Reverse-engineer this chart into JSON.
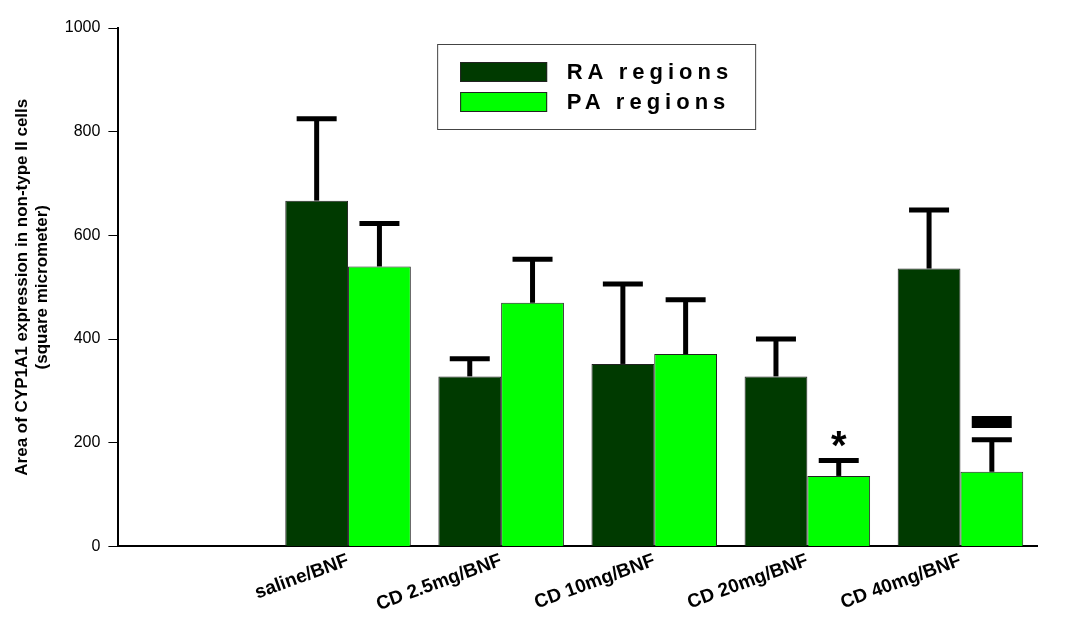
{
  "chart_data": {
    "type": "bar",
    "ylabel": "Area of CYP1A1 expression in non-type II cells\n(square micrometer)",
    "categories": [
      null,
      "saline/BNF",
      "CD 2.5mg/BNF",
      "CD 10mg/BNF",
      "CD 20mg/BNF",
      "CD 40mg/BNF"
    ],
    "series": [
      {
        "name": "RA regions",
        "color": "#003a00",
        "values": [
          null,
          667,
          328,
          352,
          328,
          536
        ],
        "errors": [
          null,
          [
            667,
            825
          ],
          [
            328,
            362
          ],
          [
            352,
            506
          ],
          [
            328,
            400
          ],
          [
            536,
            649
          ]
        ]
      },
      {
        "name": "PA regions",
        "color": "#00ff00",
        "values": [
          null,
          540,
          470,
          371,
          136,
          144
        ],
        "errors": [
          null,
          [
            540,
            623
          ],
          [
            470,
            554
          ],
          [
            371,
            476
          ],
          [
            136,
            166
          ],
          [
            144,
            206
          ]
        ]
      }
    ],
    "ylim": [
      0,
      1000
    ],
    "yticks": [
      0,
      200,
      400,
      600,
      800,
      1000
    ],
    "grid": false,
    "legend": "top",
    "annotations": [
      {
        "text": "*",
        "x": "CD 20mg/BNF",
        "y": 190
      },
      {
        "text": "▬",
        "x": "CD 40mg/BNF",
        "y": 250
      }
    ]
  }
}
